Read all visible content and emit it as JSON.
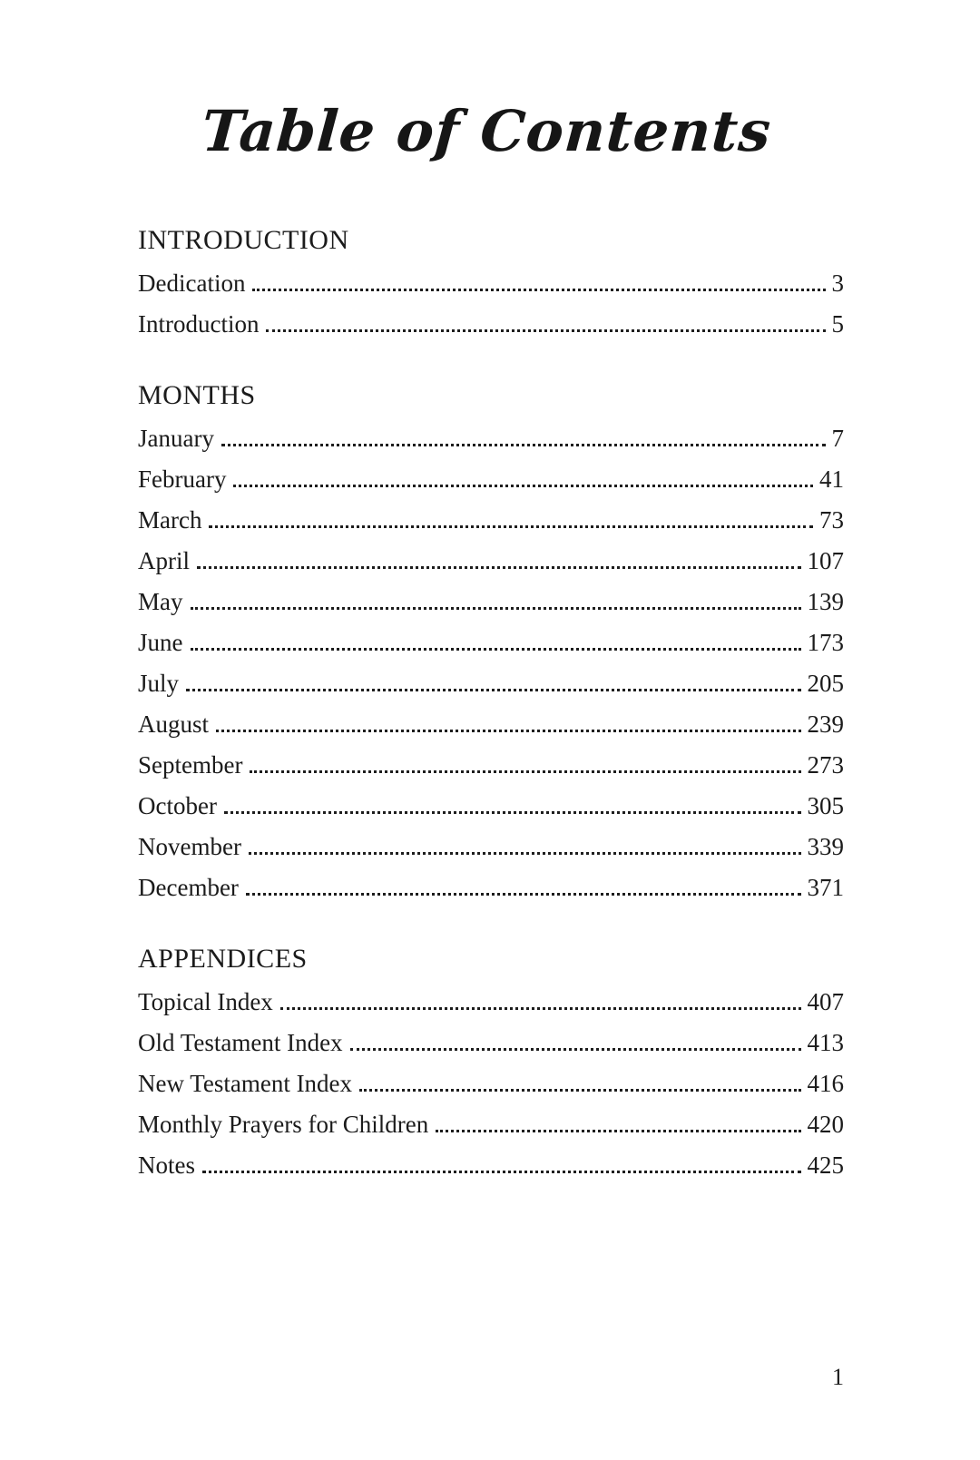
{
  "page": {
    "title": "Table of Contents",
    "page_number": "1"
  },
  "sections": [
    {
      "heading": "INTRODUCTION",
      "entries": [
        {
          "label": "Dedication",
          "page": "3"
        },
        {
          "label": "Introduction",
          "page": "5"
        }
      ]
    },
    {
      "heading": "MONTHS",
      "entries": [
        {
          "label": "January",
          "page": "7"
        },
        {
          "label": "February",
          "page": "41"
        },
        {
          "label": "March",
          "page": "73"
        },
        {
          "label": "April",
          "page": "107"
        },
        {
          "label": "May",
          "page": "139"
        },
        {
          "label": "June",
          "page": "173"
        },
        {
          "label": "July",
          "page": "205"
        },
        {
          "label": "August",
          "page": "239"
        },
        {
          "label": "September",
          "page": "273"
        },
        {
          "label": "October",
          "page": "305"
        },
        {
          "label": "November",
          "page": "339"
        },
        {
          "label": "December",
          "page": "371"
        }
      ]
    },
    {
      "heading": "APPENDICES",
      "entries": [
        {
          "label": "Topical Index",
          "page": "407"
        },
        {
          "label": "Old Testament Index",
          "page": "413"
        },
        {
          "label": "New Testament Index",
          "page": "416"
        },
        {
          "label": "Monthly Prayers for Children",
          "page": "420"
        },
        {
          "label": "Notes",
          "page": "425"
        }
      ]
    }
  ]
}
